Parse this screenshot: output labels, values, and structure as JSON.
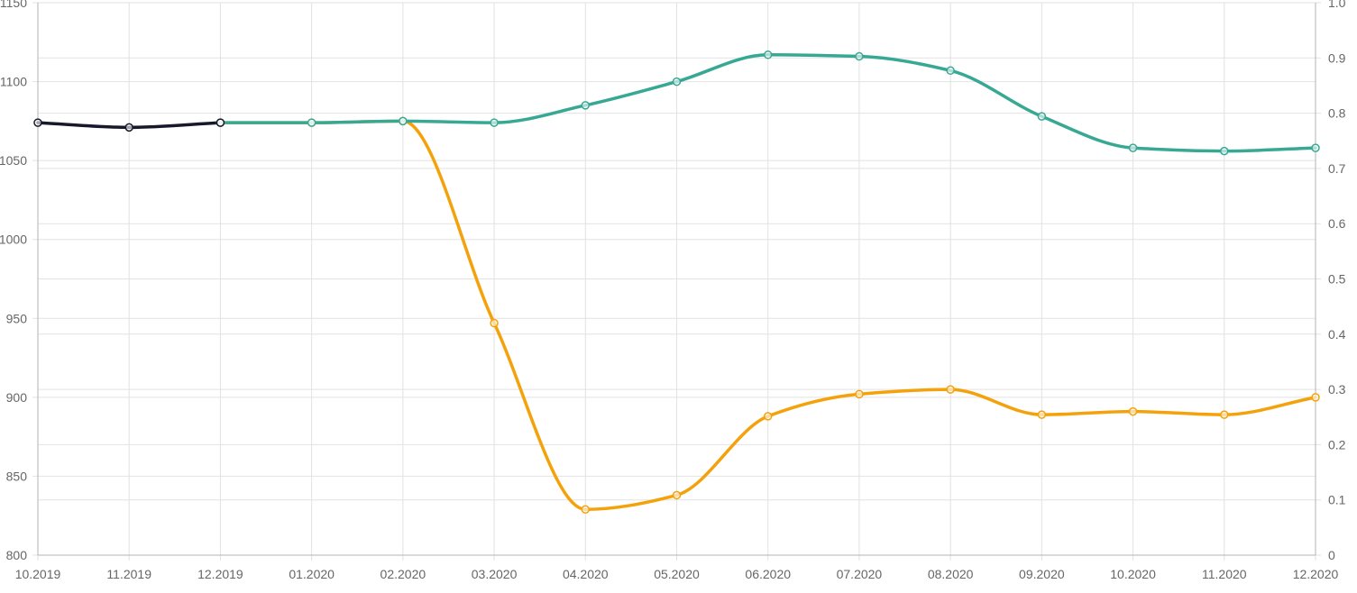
{
  "chart_data": {
    "type": "line",
    "categories": [
      "10.2019",
      "11.2019",
      "12.2019",
      "01.2020",
      "02.2020",
      "03.2020",
      "04.2020",
      "05.2020",
      "06.2020",
      "07.2020",
      "08.2020",
      "09.2020",
      "10.2020",
      "11.2020",
      "12.2020"
    ],
    "y_left": {
      "min": 800,
      "max": 1150,
      "ticks": [
        800,
        850,
        900,
        950,
        1000,
        1050,
        1100,
        1150
      ]
    },
    "y_right": {
      "min": 0,
      "max": 1,
      "ticks": [
        0,
        0.1,
        0.2,
        0.3,
        0.4,
        0.5,
        0.6,
        0.7,
        0.8,
        0.9,
        1.0
      ]
    },
    "y_left_tick_labels": [
      "800",
      "850",
      "900",
      "950",
      "1000",
      "1050",
      "1100",
      "1150"
    ],
    "y_right_tick_labels": [
      "0",
      "0.1",
      "0.2",
      "0.3",
      "0.4",
      "0.5",
      "0.6",
      "0.7",
      "0.8",
      "0.9",
      "1.0"
    ],
    "grid": true,
    "series": [
      {
        "color": "#17182b",
        "values": [
          1074,
          1071,
          1074,
          null,
          null,
          null,
          null,
          null,
          null,
          null,
          null,
          null,
          null,
          null,
          null
        ]
      },
      {
        "color": "#f4a20c",
        "values": [
          null,
          null,
          1074,
          1074,
          1075,
          947,
          829,
          838,
          888,
          902,
          905,
          889,
          891,
          889,
          900
        ]
      },
      {
        "color": "#37a894",
        "values": [
          null,
          null,
          1074,
          1074,
          1075,
          1074,
          1085,
          1100,
          1117,
          1116,
          1107,
          1078,
          1058,
          1056,
          1058
        ]
      }
    ]
  }
}
